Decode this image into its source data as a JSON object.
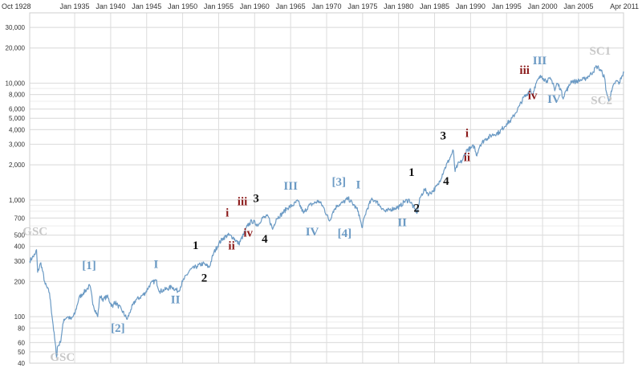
{
  "chart_data": {
    "type": "line",
    "title": "",
    "xlabel": "",
    "ylabel": "",
    "y_scale": "log",
    "ylim": [
      40,
      40000
    ],
    "xlim": [
      "Oct 1928",
      "Apr 2011"
    ],
    "grid": true,
    "line_color": "#6b9ac4",
    "x_tick_labels": [
      "Oct 1928",
      "Jan 1935",
      "Jan 1940",
      "Jan 1945",
      "Jan 1950",
      "Jan 1955",
      "Jan 1960",
      "Jan 1965",
      "Jan 1970",
      "Jan 1975",
      "Jan 1980",
      "Jan 1985",
      "Jan 1990",
      "Jan 1995",
      "Jan 2000",
      "Jan 2005",
      "Apr 2011"
    ],
    "y_tick_labels": [
      "30,000",
      "20,000",
      "10,000",
      "8,000",
      "6,000",
      "5,000",
      "4,000",
      "3,000",
      "2,000",
      "1,000",
      "700",
      "500",
      "400",
      "300",
      "200",
      "100",
      "80",
      "60",
      "50",
      "40"
    ],
    "series": [
      {
        "x": [
          1928.75,
          1929.1,
          1929.5,
          1929.7,
          1929.85,
          1930.3,
          1930.9,
          1931.5,
          1932.0,
          1932.5,
          1932.6,
          1933.0,
          1933.5,
          1934.0,
          1934.5,
          1935.0,
          1935.6,
          1936.2,
          1936.8,
          1937.1,
          1937.6,
          1938.2,
          1938.5,
          1939.0,
          1939.5,
          1940.3,
          1940.5,
          1941.0,
          1941.5,
          1942.3,
          1942.8,
          1943.5,
          1944.0,
          1944.8,
          1945.5,
          1946.3,
          1946.8,
          1947.5,
          1948.5,
          1949.4,
          1950.0,
          1951.0,
          1952.0,
          1952.8,
          1953.7,
          1954.3,
          1955.0,
          1955.6,
          1956.3,
          1957.0,
          1957.8,
          1958.5,
          1959.0,
          1959.6,
          1960.5,
          1961.0,
          1961.9,
          1962.5,
          1963.0,
          1963.8,
          1964.5,
          1965.3,
          1966.0,
          1966.8,
          1967.5,
          1968.0,
          1968.9,
          1969.5,
          1970.4,
          1970.9,
          1971.5,
          1972.3,
          1973.0,
          1973.8,
          1974.4,
          1974.9,
          1975.5,
          1976.2,
          1976.8,
          1977.5,
          1978.2,
          1978.8,
          1979.5,
          1980.2,
          1980.8,
          1981.5,
          1982.2,
          1982.6,
          1983.0,
          1983.6,
          1984.2,
          1984.8,
          1985.5,
          1986.3,
          1987.0,
          1987.6,
          1987.85,
          1988.2,
          1988.8,
          1989.5,
          1990.0,
          1990.5,
          1990.8,
          1991.3,
          1992.0,
          1993.0,
          1994.0,
          1995.0,
          1995.6,
          1996.2,
          1996.8,
          1997.4,
          1997.8,
          1998.3,
          1998.6,
          1998.9,
          1999.5,
          1999.9,
          2000.1,
          2000.6,
          2001.1,
          2001.5,
          2001.7,
          2002.0,
          2002.5,
          2002.8,
          2003.2,
          2003.6,
          2004.0,
          2004.6,
          2005.2,
          2005.8,
          2006.4,
          2007.0,
          2007.5,
          2007.8,
          2008.3,
          2008.6,
          2008.85,
          2009.2,
          2009.6,
          2010.0,
          2010.4,
          2010.6,
          2011.0,
          2011.3
        ],
        "values": [
          300,
          320,
          340,
          375,
          240,
          290,
          190,
          160,
          85,
          45,
          55,
          60,
          95,
          100,
          95,
          105,
          145,
          160,
          175,
          185,
          125,
          100,
          150,
          140,
          150,
          120,
          135,
          125,
          115,
          95,
          115,
          140,
          145,
          160,
          190,
          205,
          165,
          170,
          180,
          165,
          200,
          250,
          270,
          285,
          265,
          350,
          420,
          470,
          500,
          480,
          420,
          510,
          600,
          660,
          610,
          700,
          720,
          560,
          690,
          760,
          850,
          900,
          980,
          770,
          890,
          920,
          980,
          880,
          660,
          800,
          900,
          950,
          1030,
          900,
          800,
          580,
          800,
          1000,
          990,
          880,
          790,
          830,
          850,
          880,
          970,
          1000,
          840,
          780,
          1050,
          1230,
          1120,
          1200,
          1350,
          1800,
          2200,
          2650,
          1750,
          2000,
          2150,
          2700,
          2750,
          2900,
          2400,
          2950,
          3300,
          3600,
          3800,
          4500,
          4800,
          5500,
          6400,
          7600,
          7900,
          9000,
          7800,
          9300,
          11000,
          11500,
          11000,
          10500,
          10800,
          10000,
          8600,
          10000,
          9000,
          7500,
          8500,
          9200,
          10500,
          10300,
          10600,
          10800,
          11500,
          12500,
          13900,
          13500,
          12200,
          11200,
          8500,
          7000,
          8500,
          10000,
          10500,
          9800,
          11500,
          12300
        ]
      }
    ],
    "annotations": [
      {
        "text": "GSC",
        "x": 1929.5,
        "y": 500,
        "color": "#c8c8c8"
      },
      {
        "text": "GSC",
        "x": 1933.3,
        "y": 42,
        "color": "#c8c8c8"
      },
      {
        "text": "[1]",
        "x": 1937.0,
        "y": 255,
        "color": "#6b9ac4"
      },
      {
        "text": "[2]",
        "x": 1941.0,
        "y": 74,
        "color": "#6b9ac4"
      },
      {
        "text": "I",
        "x": 1946.3,
        "y": 262,
        "color": "#6b9ac4"
      },
      {
        "text": "II",
        "x": 1949.0,
        "y": 130,
        "color": "#6b9ac4"
      },
      {
        "text": "1",
        "x": 1951.8,
        "y": 380,
        "color": "#111111"
      },
      {
        "text": "2",
        "x": 1953.0,
        "y": 200,
        "color": "#111111"
      },
      {
        "text": "i",
        "x": 1956.2,
        "y": 720,
        "color": "#8b1a1a"
      },
      {
        "text": "ii",
        "x": 1956.8,
        "y": 375,
        "color": "#8b1a1a"
      },
      {
        "text": "iii",
        "x": 1958.3,
        "y": 900,
        "color": "#8b1a1a"
      },
      {
        "text": "3",
        "x": 1960.2,
        "y": 960,
        "color": "#111111"
      },
      {
        "text": "iv",
        "x": 1959.1,
        "y": 485,
        "color": "#8b1a1a"
      },
      {
        "text": "4",
        "x": 1961.4,
        "y": 430,
        "color": "#111111"
      },
      {
        "text": "III",
        "x": 1965.0,
        "y": 1230,
        "color": "#6b9ac4"
      },
      {
        "text": "IV",
        "x": 1968.0,
        "y": 495,
        "color": "#6b9ac4"
      },
      {
        "text": "[3]",
        "x": 1971.7,
        "y": 1330,
        "color": "#6b9ac4"
      },
      {
        "text": "I",
        "x": 1974.4,
        "y": 1250,
        "color": "#6b9ac4"
      },
      {
        "text": "[4]",
        "x": 1972.5,
        "y": 480,
        "color": "#6b9ac4"
      },
      {
        "text": "II",
        "x": 1980.5,
        "y": 595,
        "color": "#6b9ac4"
      },
      {
        "text": "1",
        "x": 1981.8,
        "y": 1600,
        "color": "#111111"
      },
      {
        "text": "2",
        "x": 1982.5,
        "y": 795,
        "color": "#111111"
      },
      {
        "text": "3",
        "x": 1986.2,
        "y": 3300,
        "color": "#111111"
      },
      {
        "text": "4",
        "x": 1986.6,
        "y": 1350,
        "color": "#111111"
      },
      {
        "text": "i",
        "x": 1989.5,
        "y": 3450,
        "color": "#8b1a1a"
      },
      {
        "text": "ii",
        "x": 1989.5,
        "y": 2150,
        "color": "#8b1a1a"
      },
      {
        "text": "iii",
        "x": 1997.5,
        "y": 12000,
        "color": "#8b1a1a"
      },
      {
        "text": "iv",
        "x": 1998.6,
        "y": 7300,
        "color": "#8b1a1a"
      },
      {
        "text": "III",
        "x": 1999.6,
        "y": 14500,
        "color": "#6b9ac4"
      },
      {
        "text": "IV",
        "x": 2001.6,
        "y": 6800,
        "color": "#6b9ac4"
      },
      {
        "text": "SC1",
        "x": 2008.0,
        "y": 17500,
        "color": "#c8c8c8"
      },
      {
        "text": "SC2",
        "x": 2008.2,
        "y": 6600,
        "color": "#c8c8c8"
      }
    ]
  }
}
